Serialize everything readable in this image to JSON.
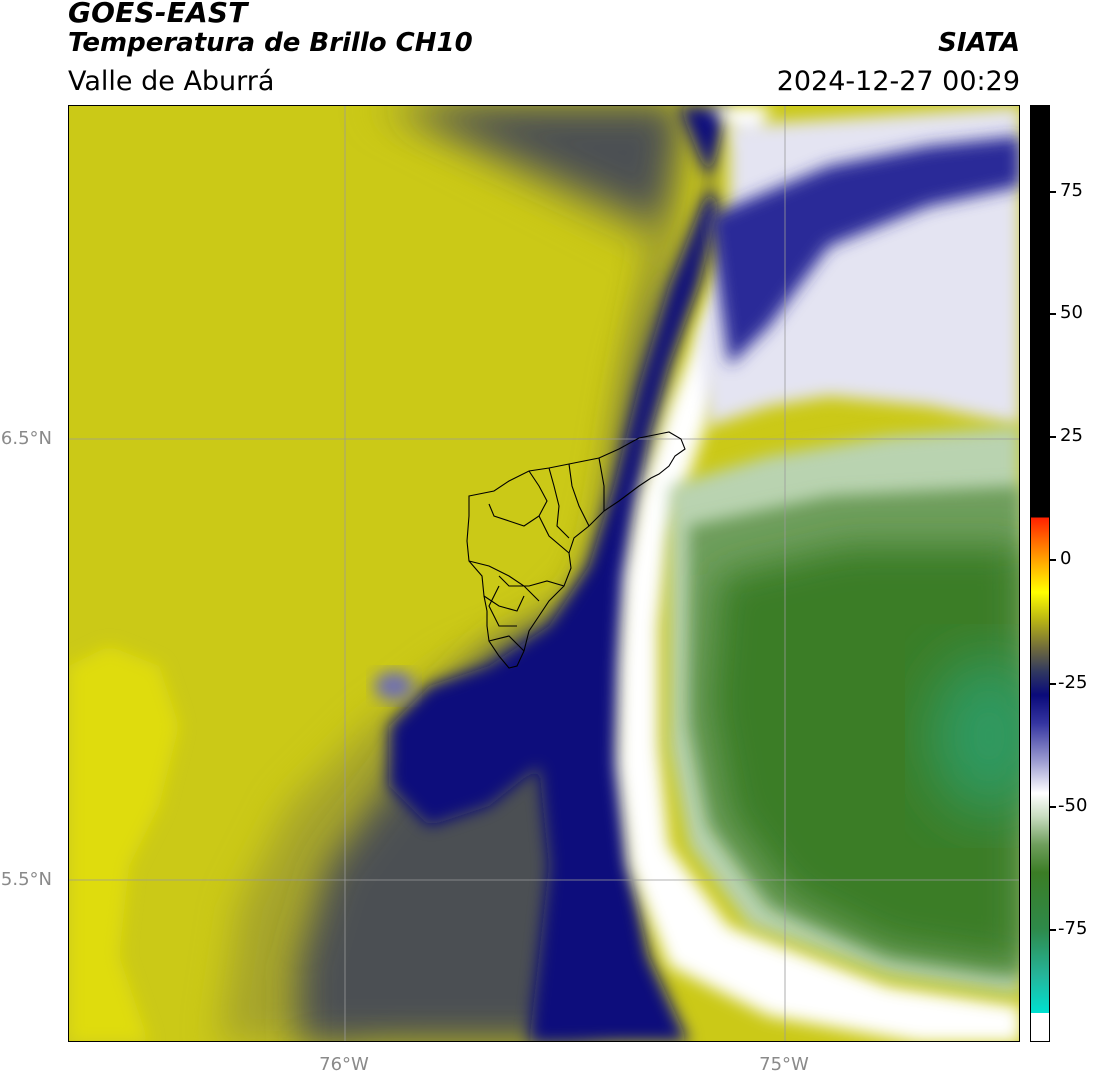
{
  "header": {
    "title": "GOES-EAST",
    "subtitle": "Temperatura de Brillo CH10",
    "region": "Valle de Aburrá",
    "brand": "SIATA",
    "timestamp": "2024-12-27 00:29"
  },
  "axes": {
    "latitude_labels": [
      "6.5°N",
      "5.5°N"
    ],
    "longitude_labels": [
      "76°W",
      "75°W"
    ]
  },
  "colorbar": {
    "ticks": [
      "75",
      "50",
      "25",
      "0",
      "-25",
      "-50",
      "-75"
    ],
    "tick_values": [
      75,
      50,
      25,
      0,
      -25,
      -50,
      -75
    ],
    "colors": {
      "warm_clear": "#cbc917",
      "mid_level": "#333a5a",
      "cold_navy": "#0a0c7c",
      "coldest_white": "#ffffff",
      "deep_green": "#3b7d25",
      "teal": "#2aa070",
      "high_black": "#000000",
      "red": "#ff2000"
    }
  },
  "map": {
    "overlay": "municipal-boundaries-outline",
    "gridlines": true
  }
}
